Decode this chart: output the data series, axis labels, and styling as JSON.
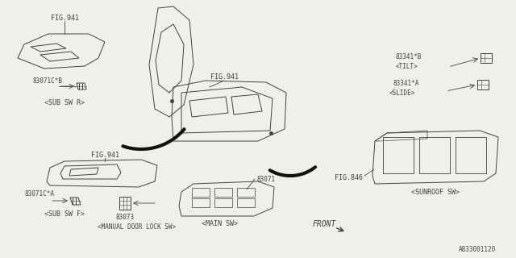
{
  "bg_color": "#f0f0eb",
  "line_color": "#404040",
  "text_color": "#404040",
  "fig_width": 6.4,
  "fig_height": 3.2,
  "diagram_code": "A833001120",
  "labels": {
    "fig941_top": "FIG.941",
    "fig941_mid": "FIG.941",
    "fig941_bot": "FIG.941",
    "fig846": "FIG.846",
    "part_83071cb": "83071C*B",
    "part_83071ca": "83071C*A",
    "part_83073": "83073",
    "part_83071": "83071",
    "part_83341b": "83341*B",
    "part_83341a": "83341*A",
    "sub_sw_r": "<SUB SW R>",
    "sub_sw_f": "<SUB SW F>",
    "main_sw": "<MAIN SW>",
    "manual_lock": "<MANUAL DOOR LOCK SW>",
    "sunroof_sw": "<SUNROOF SW>",
    "tilt": "<TILT>",
    "slide": "<SLIDE>",
    "front": "FRONT"
  }
}
